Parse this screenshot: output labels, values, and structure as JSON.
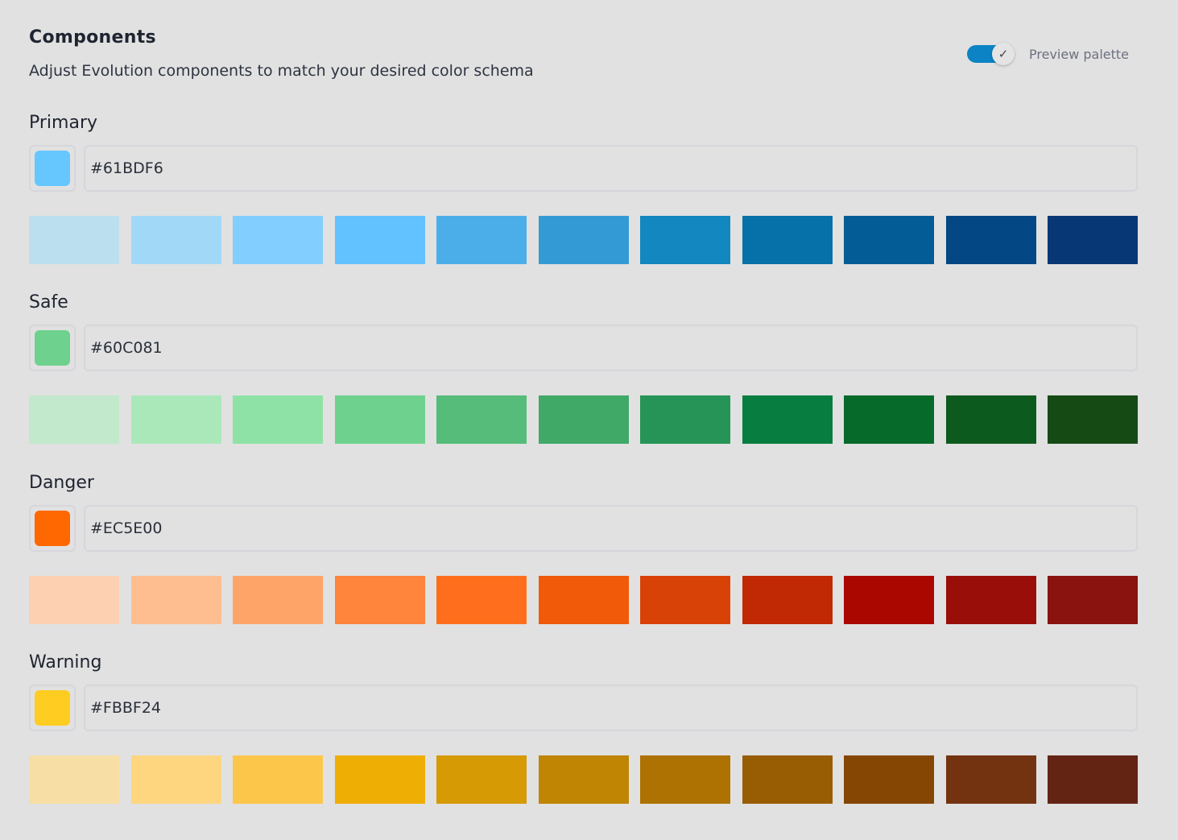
{
  "header": {
    "title": "Components",
    "subtitle": "Adjust Evolution components to match your desired color schema"
  },
  "preview": {
    "label": "Preview palette",
    "enabled": true,
    "accent": "#0b83c4"
  },
  "palettes": [
    {
      "name": "Primary",
      "hex": "#61BDF6",
      "swatch": "#66c7ff",
      "shades": [
        "#bbdfee",
        "#a1d8f8",
        "#82ceff",
        "#62c2ff",
        "#4baee8",
        "#349ad5",
        "#1287c0",
        "#0670a8",
        "#045c96",
        "#034784",
        "#083776"
      ]
    },
    {
      "name": "Safe",
      "hex": "#60C081",
      "swatch": "#6ed28e",
      "shades": [
        "#c2e9cb",
        "#aae8ba",
        "#8fe2a6",
        "#6ed28e",
        "#55bc7a",
        "#40a968",
        "#269456",
        "#077d3f",
        "#066a2b",
        "#0d5a1e",
        "#154a14"
      ]
    },
    {
      "name": "Danger",
      "hex": "#EC5E00",
      "swatch": "#ff6700",
      "shades": [
        "#fed0b2",
        "#ffbe90",
        "#ffa468",
        "#ff843c",
        "#ff6e1c",
        "#f05a08",
        "#d94206",
        "#c12804",
        "#ab0701",
        "#9a0e09",
        "#8a130f"
      ]
    },
    {
      "name": "Warning",
      "hex": "#FBBF24",
      "swatch": "#ffcc22",
      "shades": [
        "#f7dea5",
        "#fed680",
        "#fcc64a",
        "#eeae04",
        "#d59a04",
        "#c08503",
        "#ad7202",
        "#985d02",
        "#864603",
        "#743310",
        "#642414"
      ]
    }
  ]
}
